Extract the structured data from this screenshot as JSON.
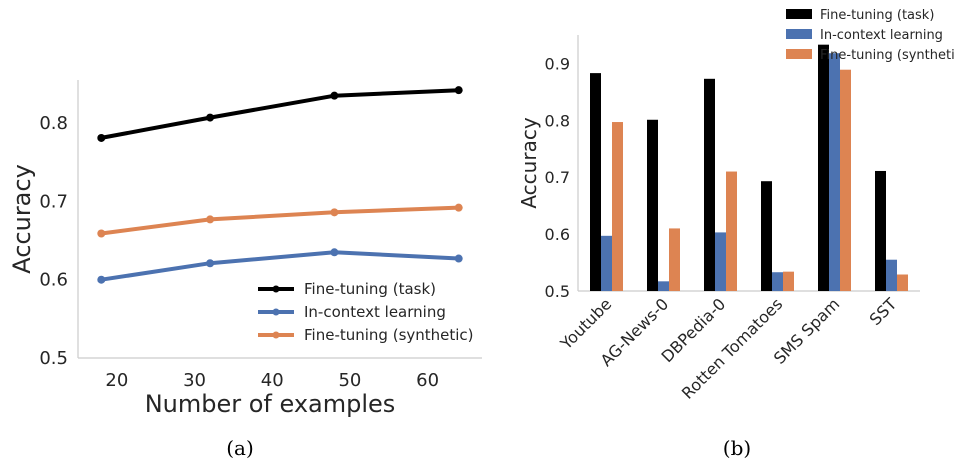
{
  "chart_data": [
    {
      "type": "line",
      "caption": "(a)",
      "xlabel": "Number of examples",
      "ylabel": "Accuracy",
      "xlim": [
        15,
        67
      ],
      "ylim": [
        0.5,
        0.855
      ],
      "xticks": [
        "20",
        "30",
        "40",
        "50",
        "60"
      ],
      "yticks": [
        "0.5",
        "0.6",
        "0.7",
        "0.8"
      ],
      "grid": false,
      "legend_position": "bottom-right",
      "x": [
        18,
        32,
        48,
        64
      ],
      "series": [
        {
          "name": "Fine-tuning (task)",
          "color": "#000000",
          "values": [
            0.781,
            0.807,
            0.835,
            0.842
          ]
        },
        {
          "name": "In-context learning",
          "color": "#4c72b0",
          "values": [
            0.6,
            0.621,
            0.635,
            0.627
          ]
        },
        {
          "name": "Fine-tuning (synthetic)",
          "color": "#dd8452",
          "values": [
            0.659,
            0.677,
            0.686,
            0.692
          ]
        }
      ]
    },
    {
      "type": "bar",
      "caption": "(b)",
      "xlabel": "",
      "ylabel": "Accuracy",
      "ylim": [
        0.5,
        0.95
      ],
      "yticks": [
        "0.5",
        "0.6",
        "0.7",
        "0.8",
        "0.9"
      ],
      "grid": false,
      "legend_position": "top-right",
      "categories": [
        "Youtube",
        "AG-News-0",
        "DBPedia-0",
        "Rotten Tomatoes",
        "SMS Spam",
        "SST"
      ],
      "series": [
        {
          "name": "Fine-tuning (task)",
          "color": "#000000",
          "values": [
            0.883,
            0.801,
            0.873,
            0.693,
            0.933,
            0.711
          ]
        },
        {
          "name": "In-context learning",
          "color": "#4c72b0",
          "values": [
            0.597,
            0.517,
            0.603,
            0.533,
            0.918,
            0.555
          ]
        },
        {
          "name": "Fine-tuning (synthetic)",
          "color": "#dd8452",
          "values": [
            0.797,
            0.61,
            0.71,
            0.534,
            0.889,
            0.529
          ]
        }
      ]
    }
  ]
}
